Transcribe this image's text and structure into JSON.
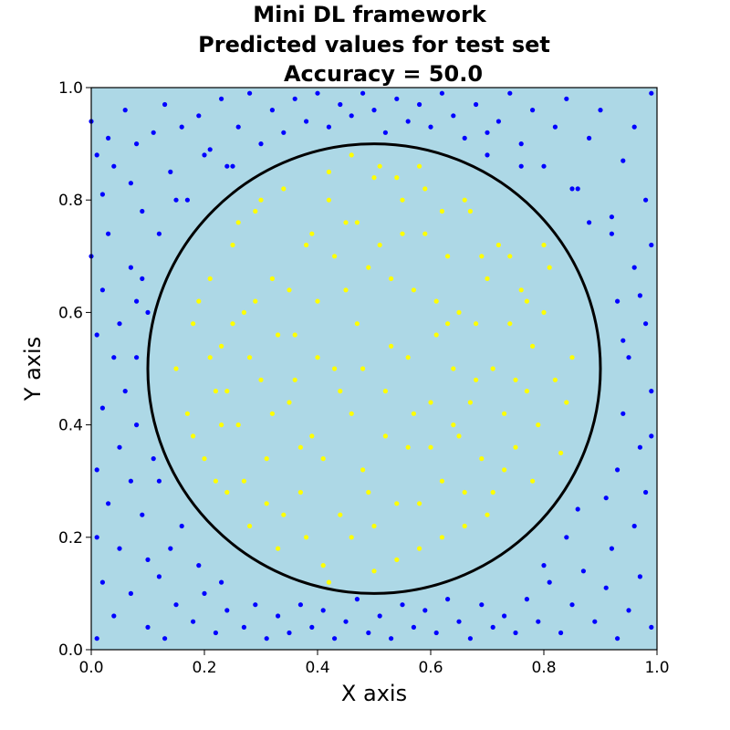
{
  "chart_data": {
    "type": "scatter",
    "title_lines": [
      "Mini DL framework",
      "Predicted values for test set",
      "Accuracy = 50.0"
    ],
    "xlabel": "X axis",
    "ylabel": "Y axis",
    "xlim": [
      0.0,
      1.0
    ],
    "ylim": [
      0.0,
      1.0
    ],
    "xticks": [
      "0.0",
      "0.2",
      "0.4",
      "0.6",
      "0.8",
      "1.0"
    ],
    "yticks": [
      "0.0",
      "0.2",
      "0.4",
      "0.6",
      "0.8",
      "1.0"
    ],
    "grid": false,
    "legend": "none",
    "boundary_circle": {
      "center": [
        0.5,
        0.5
      ],
      "radius": 0.4,
      "color": "#000000"
    },
    "background_color": "#add8e6",
    "series": [
      {
        "color": "#0000ff",
        "points": [
          [
            0.0,
            0.94
          ],
          [
            0.01,
            0.88
          ],
          [
            0.02,
            0.81
          ],
          [
            0.03,
            0.91
          ],
          [
            0.04,
            0.86
          ],
          [
            0.06,
            0.96
          ],
          [
            0.07,
            0.83
          ],
          [
            0.08,
            0.9
          ],
          [
            0.09,
            0.78
          ],
          [
            0.11,
            0.92
          ],
          [
            0.13,
            0.97
          ],
          [
            0.14,
            0.85
          ],
          [
            0.16,
            0.93
          ],
          [
            0.17,
            0.8
          ],
          [
            0.19,
            0.95
          ],
          [
            0.21,
            0.89
          ],
          [
            0.23,
            0.98
          ],
          [
            0.24,
            0.86
          ],
          [
            0.26,
            0.93
          ],
          [
            0.28,
            0.99
          ],
          [
            0.3,
            0.9
          ],
          [
            0.32,
            0.96
          ],
          [
            0.34,
            0.92
          ],
          [
            0.36,
            0.98
          ],
          [
            0.38,
            0.94
          ],
          [
            0.4,
            0.99
          ],
          [
            0.42,
            0.93
          ],
          [
            0.44,
            0.97
          ],
          [
            0.46,
            0.95
          ],
          [
            0.48,
            0.99
          ],
          [
            0.5,
            0.96
          ],
          [
            0.52,
            0.92
          ],
          [
            0.54,
            0.98
          ],
          [
            0.56,
            0.94
          ],
          [
            0.58,
            0.97
          ],
          [
            0.6,
            0.93
          ],
          [
            0.62,
            0.99
          ],
          [
            0.64,
            0.95
          ],
          [
            0.66,
            0.91
          ],
          [
            0.68,
            0.97
          ],
          [
            0.7,
            0.88
          ],
          [
            0.72,
            0.94
          ],
          [
            0.74,
            0.99
          ],
          [
            0.76,
            0.9
          ],
          [
            0.78,
            0.96
          ],
          [
            0.8,
            0.86
          ],
          [
            0.82,
            0.93
          ],
          [
            0.84,
            0.98
          ],
          [
            0.86,
            0.82
          ],
          [
            0.88,
            0.91
          ],
          [
            0.9,
            0.96
          ],
          [
            0.92,
            0.77
          ],
          [
            0.94,
            0.87
          ],
          [
            0.96,
            0.93
          ],
          [
            0.98,
            0.8
          ],
          [
            0.99,
            0.99
          ],
          [
            0.0,
            0.7
          ],
          [
            0.02,
            0.64
          ],
          [
            0.03,
            0.74
          ],
          [
            0.05,
            0.58
          ],
          [
            0.07,
            0.68
          ],
          [
            0.08,
            0.62
          ],
          [
            0.04,
            0.52
          ],
          [
            0.01,
            0.56
          ],
          [
            0.06,
            0.46
          ],
          [
            0.02,
            0.43
          ],
          [
            0.08,
            0.4
          ],
          [
            0.05,
            0.36
          ],
          [
            0.01,
            0.32
          ],
          [
            0.07,
            0.3
          ],
          [
            0.03,
            0.26
          ],
          [
            0.09,
            0.24
          ],
          [
            0.01,
            0.2
          ],
          [
            0.05,
            0.18
          ],
          [
            0.1,
            0.16
          ],
          [
            0.02,
            0.12
          ],
          [
            0.07,
            0.1
          ],
          [
            0.12,
            0.13
          ],
          [
            0.04,
            0.06
          ],
          [
            0.1,
            0.04
          ],
          [
            0.15,
            0.08
          ],
          [
            0.01,
            0.02
          ],
          [
            0.18,
            0.05
          ],
          [
            0.13,
            0.02
          ],
          [
            0.2,
            0.1
          ],
          [
            0.22,
            0.03
          ],
          [
            0.24,
            0.07
          ],
          [
            0.27,
            0.04
          ],
          [
            0.29,
            0.08
          ],
          [
            0.31,
            0.02
          ],
          [
            0.33,
            0.06
          ],
          [
            0.35,
            0.03
          ],
          [
            0.37,
            0.08
          ],
          [
            0.39,
            0.04
          ],
          [
            0.41,
            0.07
          ],
          [
            0.43,
            0.02
          ],
          [
            0.45,
            0.05
          ],
          [
            0.47,
            0.09
          ],
          [
            0.49,
            0.03
          ],
          [
            0.51,
            0.06
          ],
          [
            0.53,
            0.02
          ],
          [
            0.55,
            0.08
          ],
          [
            0.57,
            0.04
          ],
          [
            0.59,
            0.07
          ],
          [
            0.61,
            0.03
          ],
          [
            0.63,
            0.09
          ],
          [
            0.65,
            0.05
          ],
          [
            0.67,
            0.02
          ],
          [
            0.69,
            0.08
          ],
          [
            0.71,
            0.04
          ],
          [
            0.73,
            0.06
          ],
          [
            0.75,
            0.03
          ],
          [
            0.77,
            0.09
          ],
          [
            0.79,
            0.05
          ],
          [
            0.81,
            0.12
          ],
          [
            0.83,
            0.03
          ],
          [
            0.85,
            0.08
          ],
          [
            0.87,
            0.14
          ],
          [
            0.89,
            0.05
          ],
          [
            0.91,
            0.11
          ],
          [
            0.93,
            0.02
          ],
          [
            0.95,
            0.07
          ],
          [
            0.97,
            0.13
          ],
          [
            0.99,
            0.04
          ],
          [
            0.92,
            0.18
          ],
          [
            0.96,
            0.22
          ],
          [
            0.98,
            0.28
          ],
          [
            0.93,
            0.32
          ],
          [
            0.97,
            0.36
          ],
          [
            0.94,
            0.42
          ],
          [
            0.99,
            0.46
          ],
          [
            0.95,
            0.52
          ],
          [
            0.98,
            0.58
          ],
          [
            0.93,
            0.62
          ],
          [
            0.96,
            0.68
          ],
          [
            0.99,
            0.72
          ],
          [
            0.92,
            0.74
          ],
          [
            0.97,
            0.63
          ],
          [
            0.91,
            0.27
          ],
          [
            0.99,
            0.38
          ],
          [
            0.94,
            0.55
          ],
          [
            0.16,
            0.22
          ],
          [
            0.14,
            0.18
          ],
          [
            0.19,
            0.15
          ],
          [
            0.23,
            0.12
          ],
          [
            0.84,
            0.2
          ],
          [
            0.8,
            0.15
          ],
          [
            0.86,
            0.25
          ],
          [
            0.12,
            0.3
          ],
          [
            0.11,
            0.34
          ],
          [
            0.88,
            0.76
          ],
          [
            0.85,
            0.82
          ],
          [
            0.15,
            0.8
          ],
          [
            0.12,
            0.74
          ],
          [
            0.09,
            0.66
          ],
          [
            0.1,
            0.6
          ],
          [
            0.08,
            0.52
          ],
          [
            0.2,
            0.88
          ],
          [
            0.25,
            0.86
          ],
          [
            0.76,
            0.86
          ],
          [
            0.7,
            0.92
          ]
        ]
      },
      {
        "color": "#ffff00",
        "points": [
          [
            0.15,
            0.5
          ],
          [
            0.17,
            0.42
          ],
          [
            0.18,
            0.58
          ],
          [
            0.2,
            0.34
          ],
          [
            0.21,
            0.66
          ],
          [
            0.22,
            0.46
          ],
          [
            0.23,
            0.54
          ],
          [
            0.24,
            0.28
          ],
          [
            0.25,
            0.72
          ],
          [
            0.26,
            0.4
          ],
          [
            0.27,
            0.6
          ],
          [
            0.28,
            0.22
          ],
          [
            0.29,
            0.78
          ],
          [
            0.3,
            0.48
          ],
          [
            0.31,
            0.34
          ],
          [
            0.32,
            0.66
          ],
          [
            0.33,
            0.18
          ],
          [
            0.34,
            0.82
          ],
          [
            0.35,
            0.44
          ],
          [
            0.36,
            0.56
          ],
          [
            0.37,
            0.28
          ],
          [
            0.38,
            0.72
          ],
          [
            0.39,
            0.38
          ],
          [
            0.4,
            0.62
          ],
          [
            0.41,
            0.15
          ],
          [
            0.42,
            0.85
          ],
          [
            0.43,
            0.5
          ],
          [
            0.44,
            0.24
          ],
          [
            0.45,
            0.76
          ],
          [
            0.46,
            0.42
          ],
          [
            0.47,
            0.58
          ],
          [
            0.48,
            0.32
          ],
          [
            0.49,
            0.68
          ],
          [
            0.5,
            0.14
          ],
          [
            0.51,
            0.86
          ],
          [
            0.52,
            0.46
          ],
          [
            0.53,
            0.54
          ],
          [
            0.54,
            0.26
          ],
          [
            0.55,
            0.74
          ],
          [
            0.56,
            0.36
          ],
          [
            0.57,
            0.64
          ],
          [
            0.58,
            0.18
          ],
          [
            0.59,
            0.82
          ],
          [
            0.6,
            0.44
          ],
          [
            0.61,
            0.56
          ],
          [
            0.62,
            0.3
          ],
          [
            0.63,
            0.7
          ],
          [
            0.64,
            0.4
          ],
          [
            0.65,
            0.6
          ],
          [
            0.66,
            0.22
          ],
          [
            0.67,
            0.78
          ],
          [
            0.68,
            0.48
          ],
          [
            0.69,
            0.34
          ],
          [
            0.7,
            0.66
          ],
          [
            0.71,
            0.28
          ],
          [
            0.72,
            0.72
          ],
          [
            0.73,
            0.42
          ],
          [
            0.74,
            0.58
          ],
          [
            0.75,
            0.36
          ],
          [
            0.76,
            0.64
          ],
          [
            0.77,
            0.46
          ],
          [
            0.78,
            0.54
          ],
          [
            0.79,
            0.4
          ],
          [
            0.8,
            0.6
          ],
          [
            0.82,
            0.48
          ],
          [
            0.84,
            0.44
          ],
          [
            0.85,
            0.52
          ],
          [
            0.83,
            0.35
          ],
          [
            0.81,
            0.68
          ],
          [
            0.19,
            0.62
          ],
          [
            0.18,
            0.38
          ],
          [
            0.22,
            0.3
          ],
          [
            0.26,
            0.76
          ],
          [
            0.3,
            0.8
          ],
          [
            0.34,
            0.24
          ],
          [
            0.38,
            0.2
          ],
          [
            0.42,
            0.12
          ],
          [
            0.46,
            0.88
          ],
          [
            0.5,
            0.84
          ],
          [
            0.54,
            0.16
          ],
          [
            0.58,
            0.86
          ],
          [
            0.62,
            0.2
          ],
          [
            0.66,
            0.8
          ],
          [
            0.7,
            0.24
          ],
          [
            0.74,
            0.7
          ],
          [
            0.78,
            0.3
          ],
          [
            0.8,
            0.72
          ],
          [
            0.36,
            0.48
          ],
          [
            0.4,
            0.52
          ],
          [
            0.44,
            0.46
          ],
          [
            0.48,
            0.5
          ],
          [
            0.52,
            0.38
          ],
          [
            0.56,
            0.52
          ],
          [
            0.6,
            0.36
          ],
          [
            0.64,
            0.5
          ],
          [
            0.68,
            0.58
          ],
          [
            0.32,
            0.42
          ],
          [
            0.28,
            0.52
          ],
          [
            0.24,
            0.46
          ],
          [
            0.41,
            0.34
          ],
          [
            0.45,
            0.64
          ],
          [
            0.49,
            0.28
          ],
          [
            0.53,
            0.66
          ],
          [
            0.57,
            0.42
          ],
          [
            0.61,
            0.62
          ],
          [
            0.65,
            0.38
          ],
          [
            0.35,
            0.64
          ],
          [
            0.39,
            0.74
          ],
          [
            0.43,
            0.7
          ],
          [
            0.47,
            0.76
          ],
          [
            0.51,
            0.72
          ],
          [
            0.55,
            0.8
          ],
          [
            0.59,
            0.74
          ],
          [
            0.63,
            0.58
          ],
          [
            0.67,
            0.44
          ],
          [
            0.71,
            0.5
          ],
          [
            0.75,
            0.48
          ],
          [
            0.33,
            0.56
          ],
          [
            0.37,
            0.36
          ],
          [
            0.29,
            0.62
          ],
          [
            0.27,
            0.3
          ],
          [
            0.31,
            0.26
          ],
          [
            0.25,
            0.58
          ],
          [
            0.21,
            0.52
          ],
          [
            0.23,
            0.4
          ],
          [
            0.77,
            0.62
          ],
          [
            0.73,
            0.32
          ],
          [
            0.69,
            0.7
          ],
          [
            0.66,
            0.28
          ],
          [
            0.62,
            0.78
          ],
          [
            0.58,
            0.26
          ],
          [
            0.54,
            0.84
          ],
          [
            0.5,
            0.22
          ],
          [
            0.46,
            0.2
          ],
          [
            0.42,
            0.8
          ]
        ]
      }
    ]
  }
}
